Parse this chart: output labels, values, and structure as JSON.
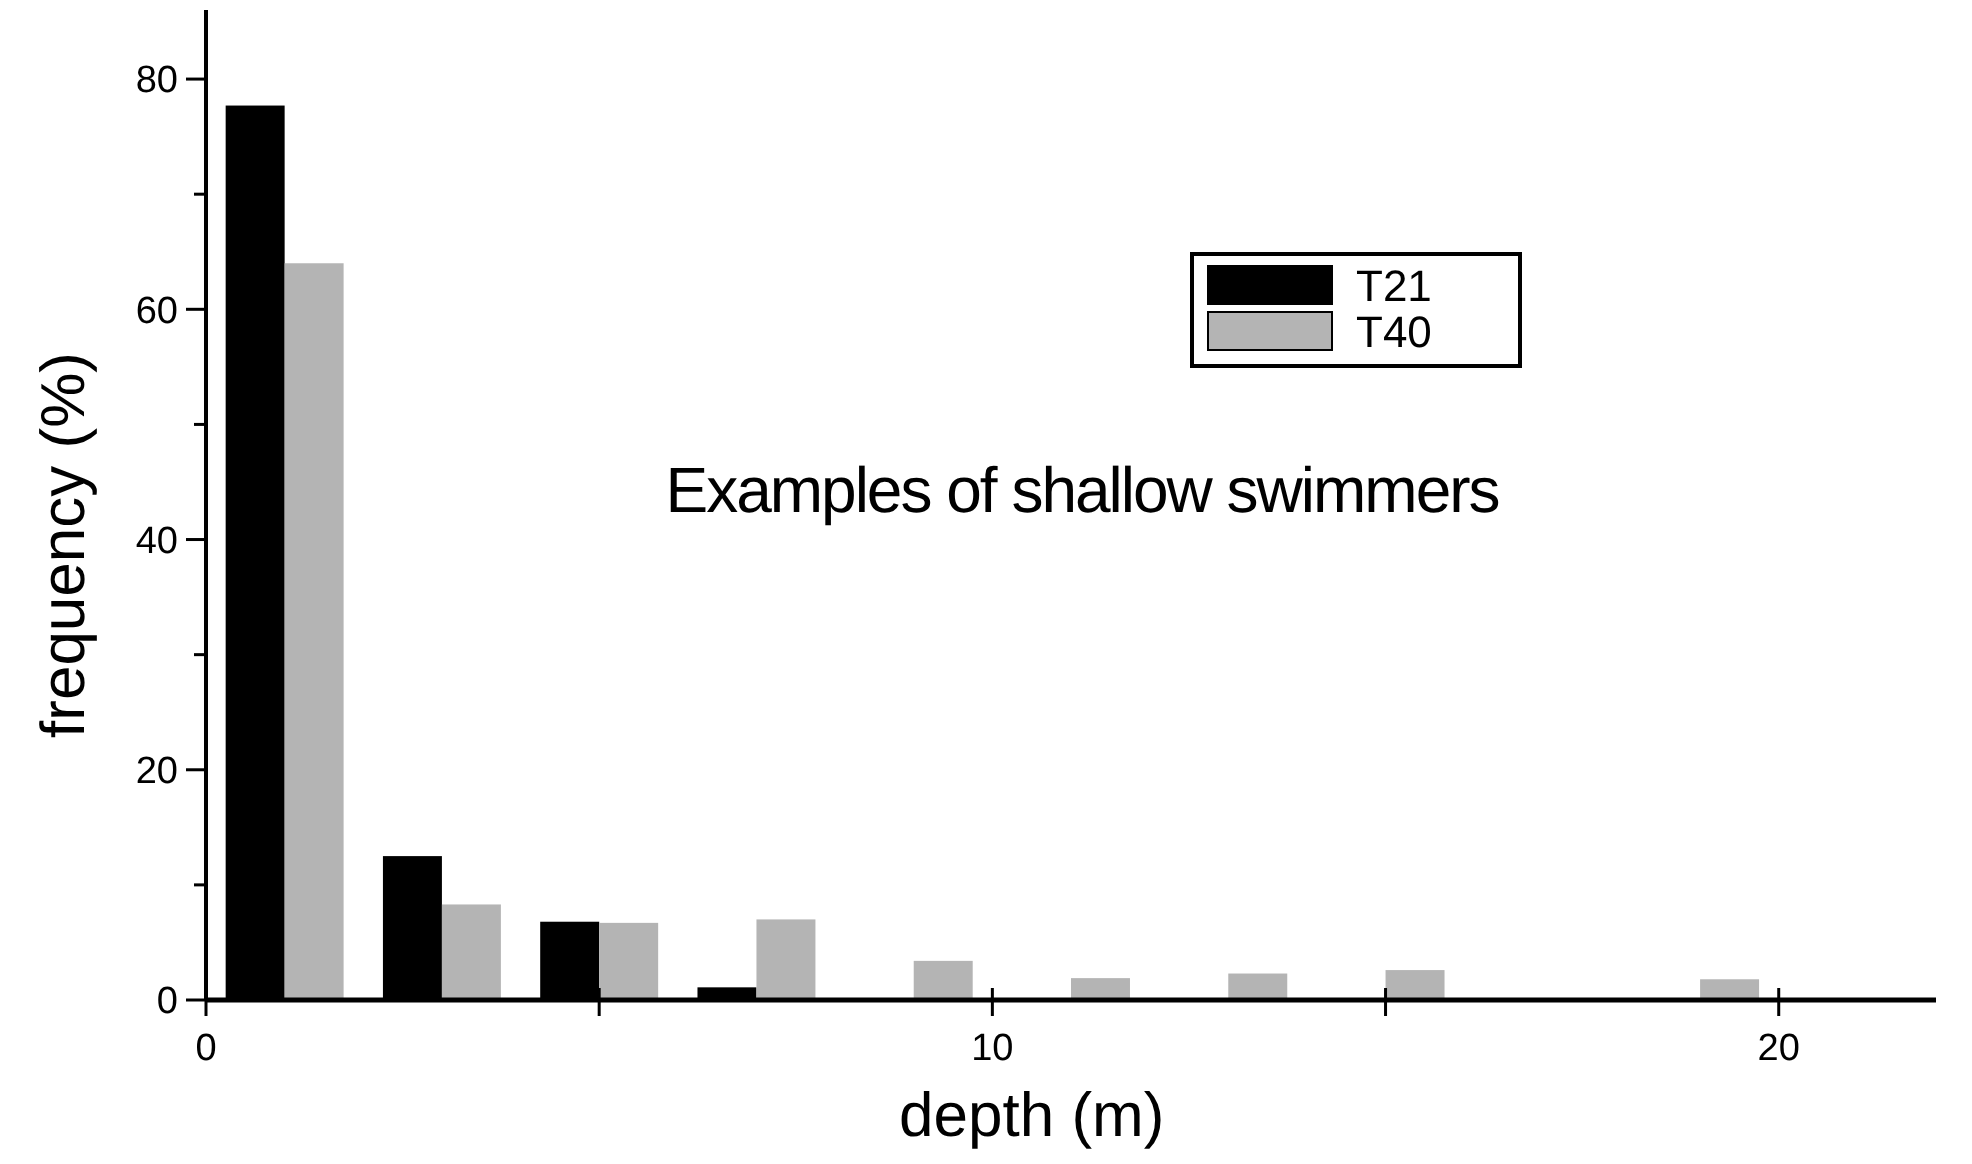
{
  "chart_data": {
    "type": "bar",
    "xlabel": "depth (m)",
    "ylabel": "frequency (%)",
    "annotations": [
      "Examples of shallow swimmers"
    ],
    "series": [
      {
        "name": "T21",
        "color": "#000000",
        "x": [
          0.625,
          2.625,
          4.625,
          6.625,
          8.625,
          10.625,
          12.625,
          14.625,
          16.625,
          18.625
        ],
        "values": [
          77.7,
          12.5,
          6.8,
          1.1,
          0,
          0,
          0,
          0,
          0,
          0
        ]
      },
      {
        "name": "T40",
        "color": "#b4b4b4",
        "x": [
          1.375,
          3.375,
          5.375,
          7.375,
          9.375,
          11.375,
          13.375,
          15.375,
          17.375,
          19.375
        ],
        "values": [
          64,
          8.3,
          6.7,
          7,
          3.4,
          1.9,
          2.3,
          2.6,
          0,
          1.8
        ]
      }
    ],
    "xlim": [
      0,
      22
    ],
    "xticks": [
      0,
      {
        "value": 5,
        "label": null
      },
      10,
      {
        "value": 15,
        "label": null
      },
      20
    ],
    "ylim": [
      0,
      86
    ],
    "yticks": [
      0,
      {
        "value": 10,
        "label": null
      },
      20,
      {
        "value": 30,
        "label": null
      },
      40,
      {
        "value": 50,
        "label": null
      },
      60,
      {
        "value": 70,
        "label": null
      },
      80
    ],
    "legend": "top right"
  }
}
